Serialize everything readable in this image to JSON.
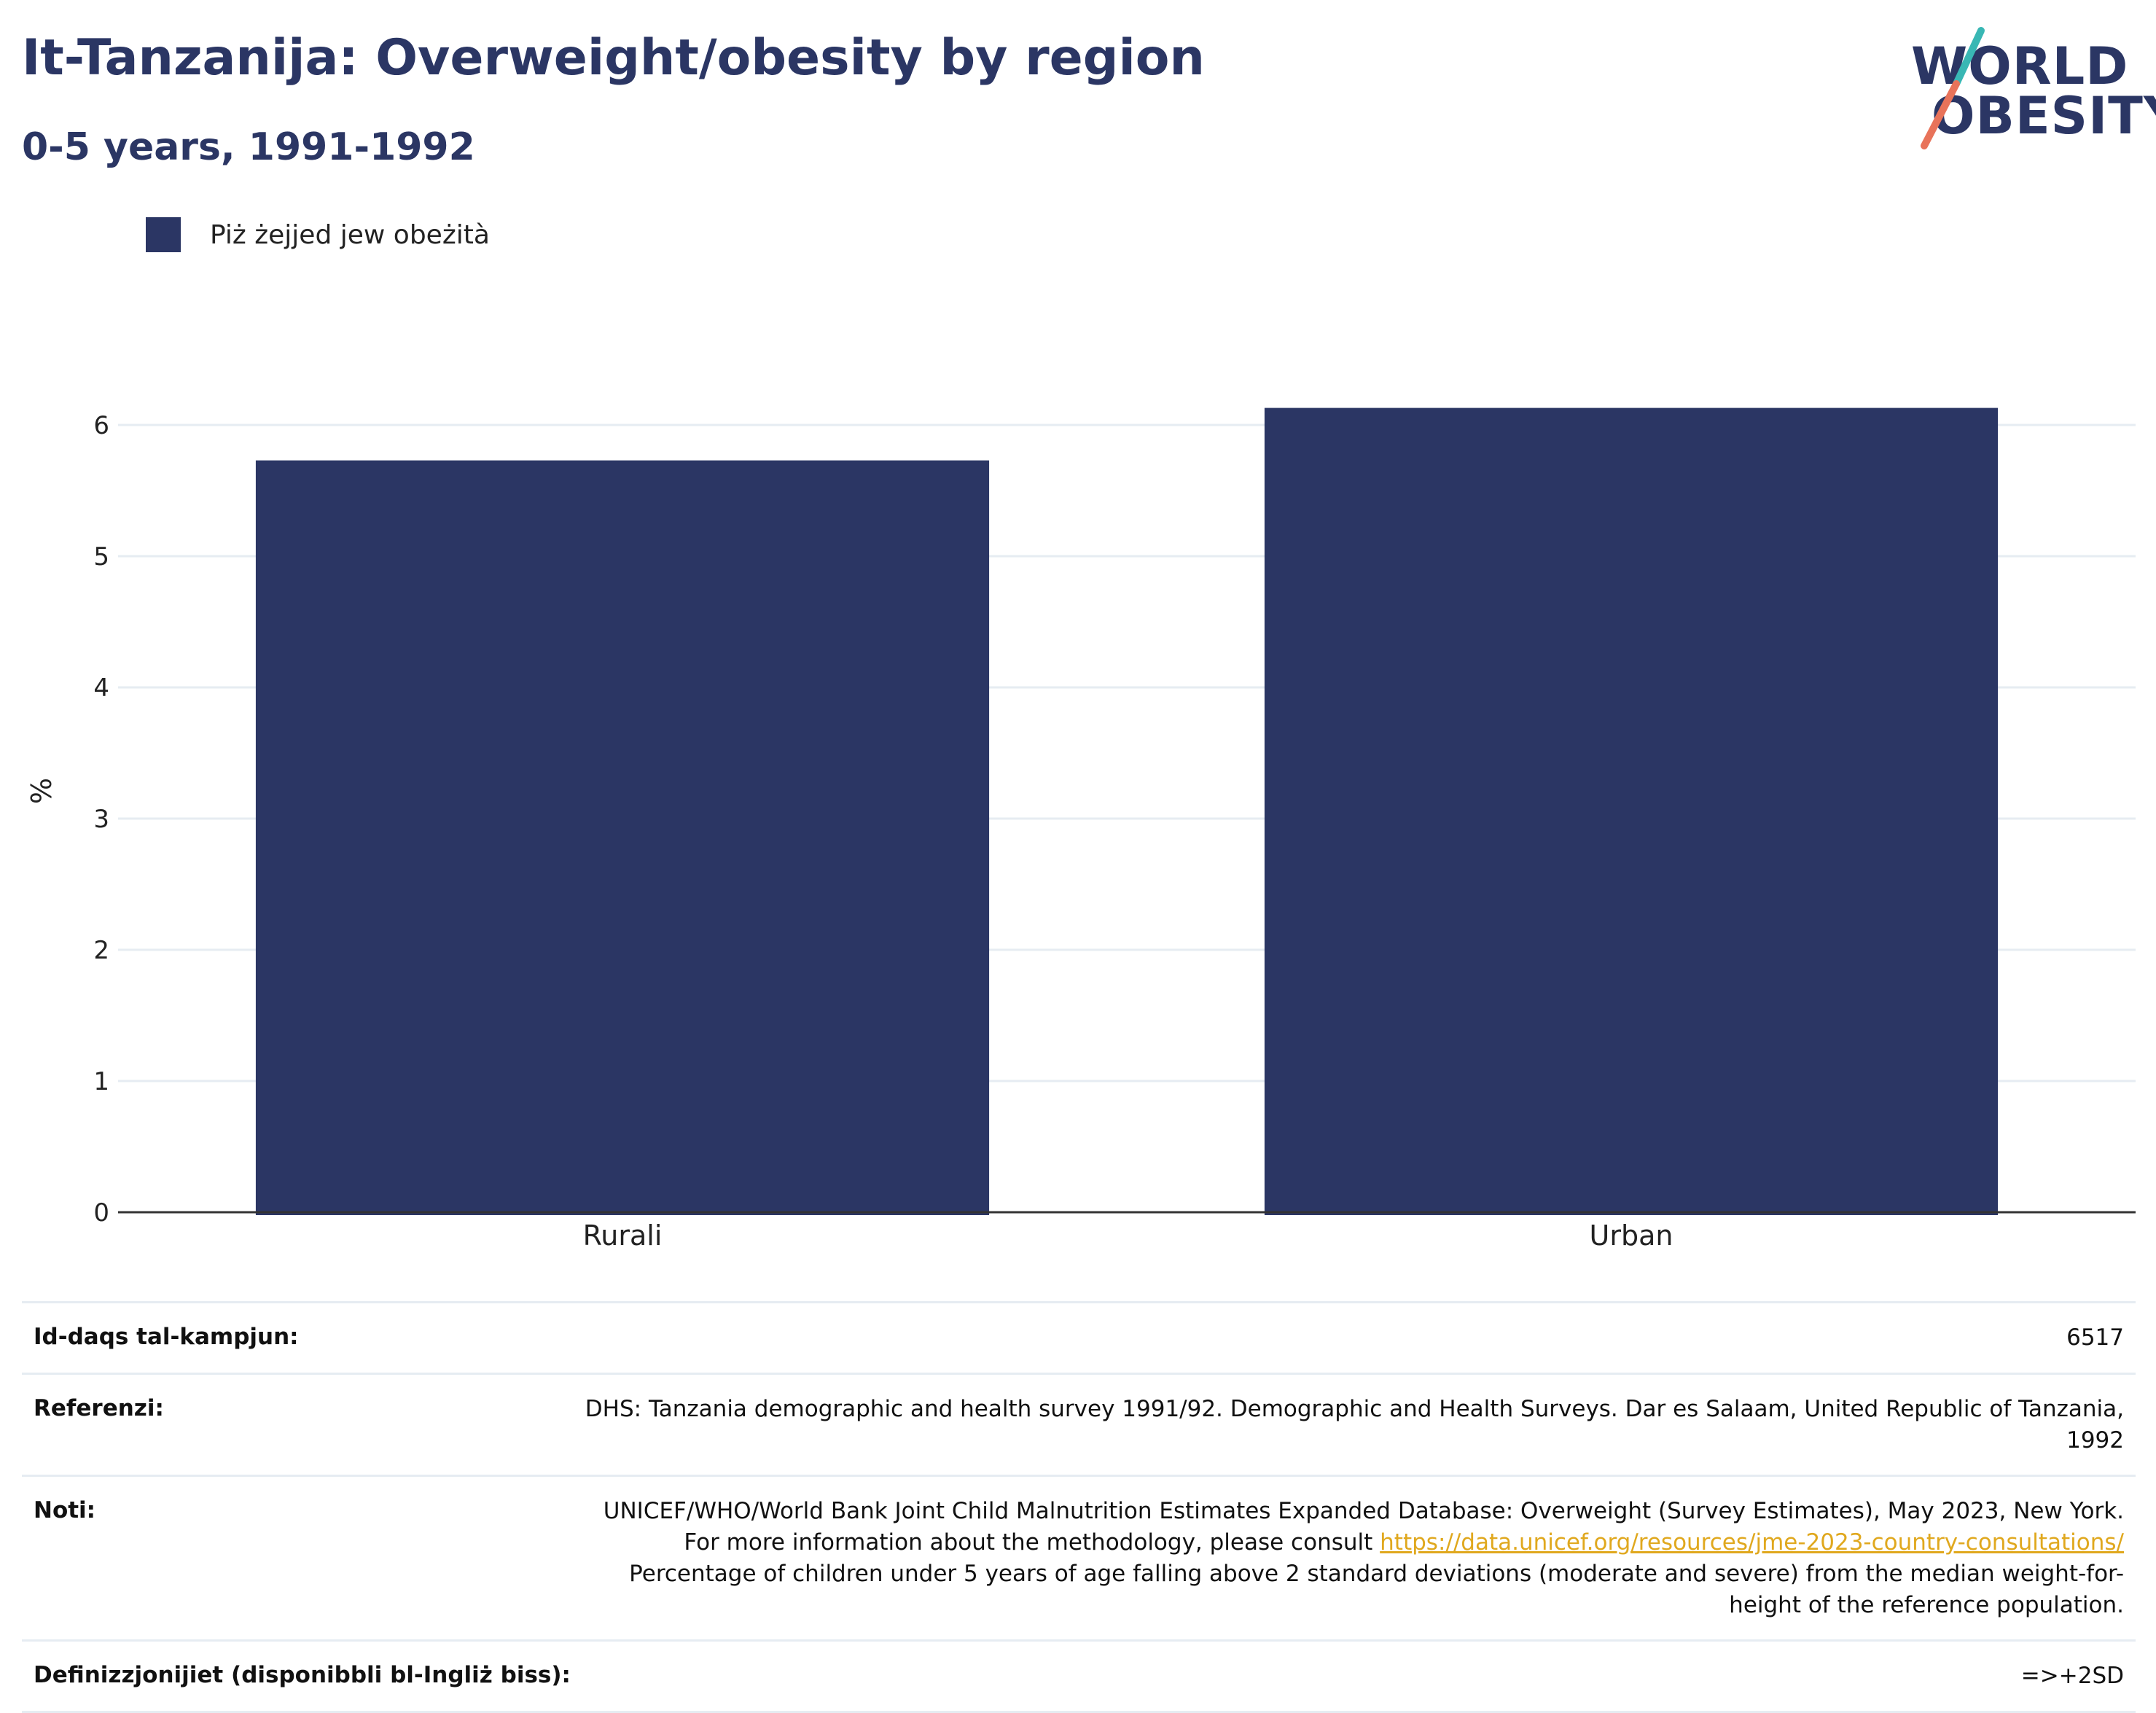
{
  "header": {
    "title": "It-Tanzanija: Overweight/obesity by region",
    "subtitle": "0-5 years, 1991-1992"
  },
  "logo": {
    "line1": "WORLD",
    "line2": "OBESITY"
  },
  "colors": {
    "bar": "#2b3664",
    "grid": "#e6ecf2",
    "axis": "#333333",
    "link": "#e0a81e"
  },
  "chart_data": {
    "type": "bar",
    "categories": [
      "Rurali",
      "Urban"
    ],
    "series": [
      {
        "name": "Piż żejjed jew obeżità",
        "values": [
          5.73,
          6.13
        ]
      }
    ],
    "ylabel": "%",
    "ylim": [
      0,
      6.5
    ],
    "yticks": [
      0,
      1,
      2,
      3,
      4,
      5,
      6
    ],
    "grid": true,
    "legend": "top-left"
  },
  "info": {
    "sample_label": "Id-daqs tal-kampjun:",
    "sample_value": "6517",
    "references_label": "Referenzi:",
    "references_value": "DHS: Tanzania demographic and health survey 1991/92. Demographic and Health Surveys. Dar es Salaam, United Republic of Tanzania, 1992",
    "notes_label": "Noti:",
    "notes_value_1": "UNICEF/WHO/World Bank Joint Child Malnutrition Estimates Expanded Database: Overweight (Survey Estimates), May 2023, New York. For more information about the methodology, please consult",
    "notes_link": "https://data.unicef.org/resources/jme-2023-country-consultations/",
    "notes_value_2": "Percentage of children under 5 years of age falling above 2 standard deviations (moderate and severe) from the median weight-for-height of the reference population.",
    "definitions_label": "Definizzjonijiet (disponibbli bl-Ingliż biss):",
    "definitions_value": "=>+2SD"
  }
}
